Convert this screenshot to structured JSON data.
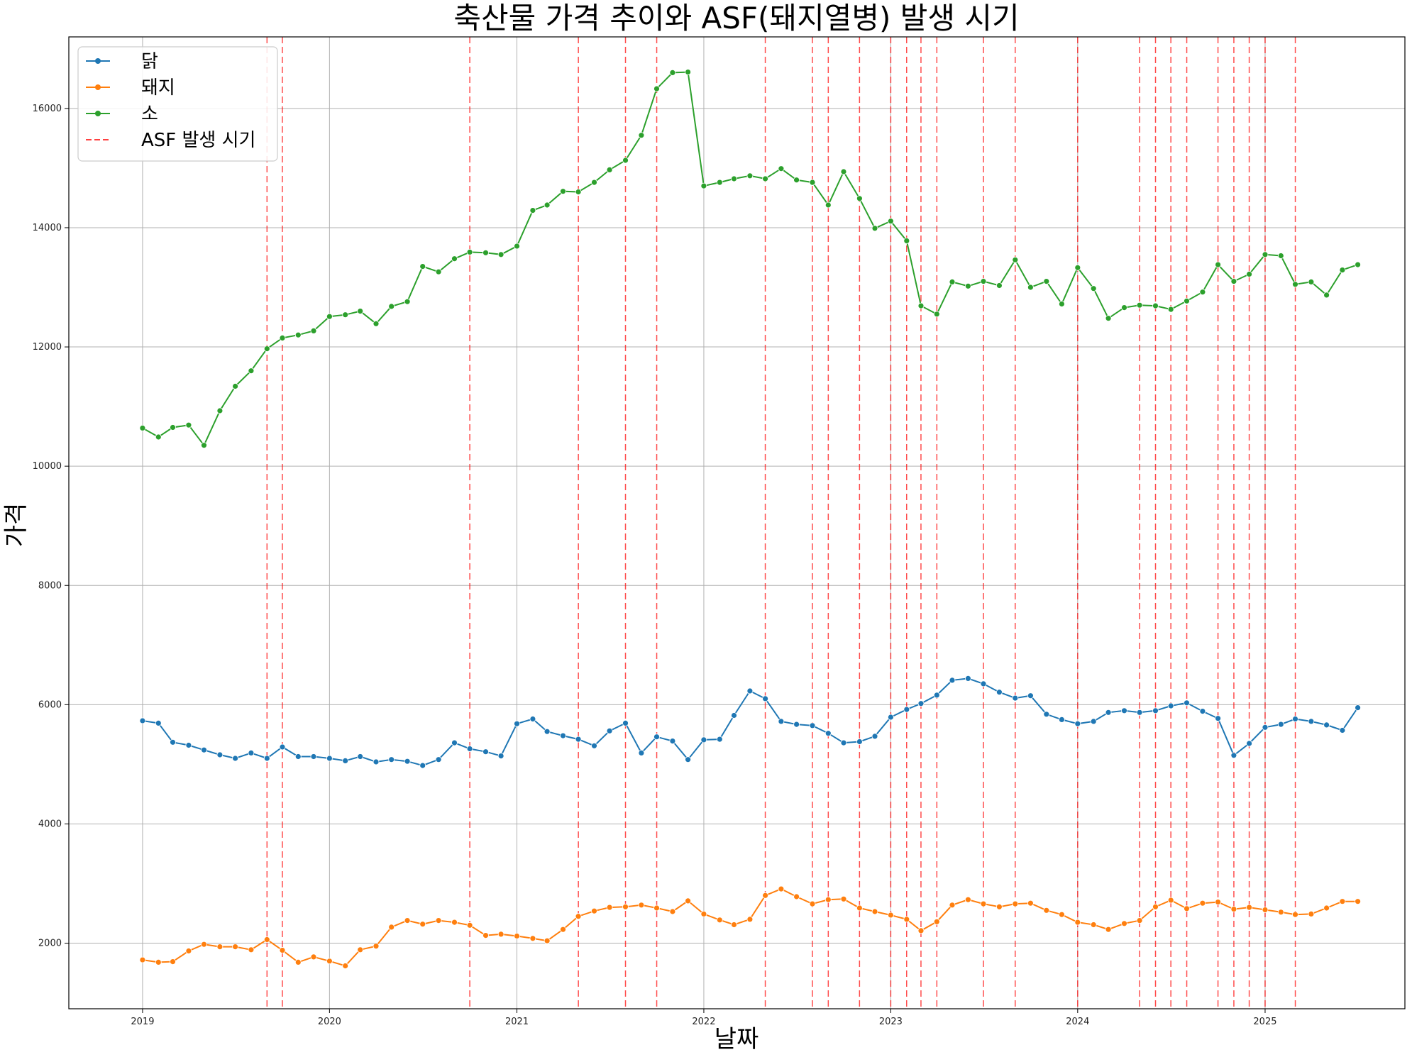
{
  "chart_data": {
    "type": "line",
    "title": "축산물 가격 추이와 ASF(돼지열병) 발생 시기",
    "xlabel": "날짜",
    "ylabel": "가격",
    "xlim": [
      "2018-08-10",
      "2025-10-01"
    ],
    "ylim": [
      900,
      17200
    ],
    "grid": true,
    "legend_position": "top-left",
    "x_ticks": [
      "2019",
      "2020",
      "2021",
      "2022",
      "2023",
      "2024",
      "2025"
    ],
    "y_ticks": [
      "2000",
      "4000",
      "6000",
      "8000",
      "10000",
      "12000",
      "14000",
      "16000"
    ],
    "x": [
      "2019-01",
      "2019-02",
      "2019-03",
      "2019-04",
      "2019-05",
      "2019-06",
      "2019-07",
      "2019-08",
      "2019-09",
      "2019-10",
      "2019-11",
      "2019-12",
      "2020-01",
      "2020-02",
      "2020-03",
      "2020-04",
      "2020-05",
      "2020-06",
      "2020-07",
      "2020-08",
      "2020-09",
      "2020-10",
      "2020-11",
      "2020-12",
      "2021-01",
      "2021-02",
      "2021-03",
      "2021-04",
      "2021-05",
      "2021-06",
      "2021-07",
      "2021-08",
      "2021-09",
      "2021-10",
      "2021-11",
      "2021-12",
      "2022-01",
      "2022-02",
      "2022-03",
      "2022-04",
      "2022-05",
      "2022-06",
      "2022-07",
      "2022-08",
      "2022-09",
      "2022-10",
      "2022-11",
      "2022-12",
      "2023-01",
      "2023-02",
      "2023-03",
      "2023-04",
      "2023-05",
      "2023-06",
      "2023-07",
      "2023-08",
      "2023-09",
      "2023-10",
      "2023-11",
      "2023-12",
      "2024-01",
      "2024-02",
      "2024-03",
      "2024-04",
      "2024-05",
      "2024-06",
      "2024-07",
      "2024-08",
      "2024-09",
      "2024-10",
      "2024-11",
      "2024-12",
      "2025-01",
      "2025-02",
      "2025-03",
      "2025-04",
      "2025-05",
      "2025-06",
      "2025-07"
    ],
    "series": [
      {
        "name": "닭",
        "color": "#1f77b4",
        "values": [
          5730,
          5690,
          5370,
          5320,
          5240,
          5160,
          5100,
          5190,
          5100,
          5290,
          5130,
          5130,
          5100,
          5060,
          5130,
          5040,
          5080,
          5050,
          4980,
          5080,
          5360,
          5260,
          5210,
          5140,
          5680,
          5760,
          5550,
          5480,
          5420,
          5310,
          5560,
          5690,
          5190,
          5460,
          5390,
          5080,
          5410,
          5420,
          5820,
          6230,
          6100,
          5720,
          5670,
          5650,
          5520,
          5360,
          5380,
          5470,
          5790,
          5920,
          6020,
          6160,
          6410,
          6440,
          6350,
          6210,
          6110,
          6150,
          5840,
          5750,
          5680,
          5720,
          5870,
          5900,
          5870,
          5900,
          5980,
          6030,
          5890,
          5770,
          5150,
          5350,
          5620,
          5670,
          5760,
          5720,
          5660,
          5570,
          5950
        ]
      },
      {
        "name": "돼지",
        "color": "#ff7f0e",
        "values": [
          1720,
          1680,
          1690,
          1870,
          1980,
          1940,
          1940,
          1890,
          2060,
          1880,
          1680,
          1770,
          1700,
          1620,
          1890,
          1950,
          2270,
          2380,
          2320,
          2380,
          2350,
          2300,
          2130,
          2150,
          2120,
          2080,
          2040,
          2230,
          2450,
          2540,
          2600,
          2610,
          2640,
          2590,
          2530,
          2710,
          2490,
          2390,
          2310,
          2400,
          2800,
          2910,
          2780,
          2660,
          2730,
          2740,
          2590,
          2530,
          2470,
          2400,
          2210,
          2360,
          2640,
          2730,
          2660,
          2610,
          2660,
          2670,
          2550,
          2480,
          2350,
          2310,
          2230,
          2330,
          2380,
          2610,
          2720,
          2580,
          2670,
          2690,
          2570,
          2600,
          2560,
          2520,
          2480,
          2490,
          2590,
          2700,
          2700
        ]
      },
      {
        "name": "소",
        "color": "#2ca02c",
        "values": [
          10640,
          10490,
          10650,
          10690,
          10350,
          10930,
          11340,
          11600,
          11970,
          12150,
          12200,
          12270,
          12510,
          12540,
          12600,
          12390,
          12680,
          12760,
          13350,
          13260,
          13480,
          13590,
          13580,
          13550,
          13690,
          14290,
          14380,
          14610,
          14600,
          14760,
          14970,
          15130,
          15550,
          16330,
          16600,
          16610,
          14700,
          14760,
          14820,
          14870,
          14820,
          14990,
          14800,
          14760,
          14380,
          14940,
          14490,
          13990,
          14110,
          13780,
          12690,
          12550,
          13090,
          13020,
          13100,
          13030,
          13460,
          13000,
          13100,
          12720,
          13330,
          12980,
          12480,
          12660,
          12700,
          12690,
          12630,
          12770,
          12920,
          13380,
          13100,
          13220,
          13550,
          13530,
          13050,
          13090,
          12870,
          13290,
          13380
        ]
      }
    ],
    "asf_series": {
      "name": "ASF 발생 시기",
      "color": "#ff0000",
      "dates": [
        "2019-09-01",
        "2019-10-01",
        "2020-10-01",
        "2021-05-01",
        "2021-08-01",
        "2021-10-01",
        "2022-05-01",
        "2022-08-01",
        "2022-09-01",
        "2022-11-01",
        "2023-01-01",
        "2023-02-01",
        "2023-03-01",
        "2023-04-01",
        "2023-07-01",
        "2023-09-01",
        "2024-01-01",
        "2024-05-01",
        "2024-06-01",
        "2024-07-01",
        "2024-08-01",
        "2024-10-01",
        "2024-11-01",
        "2024-12-01",
        "2025-01-01",
        "2025-03-01"
      ]
    }
  }
}
